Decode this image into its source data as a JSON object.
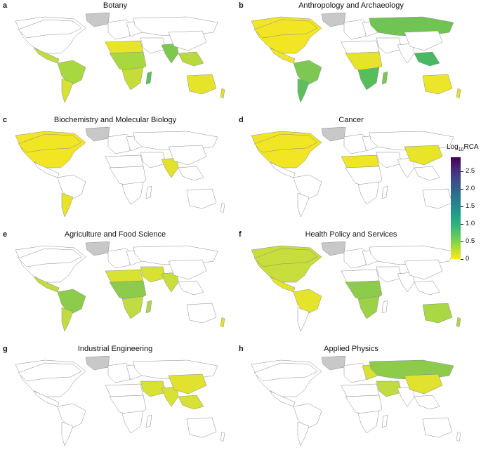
{
  "panels": [
    {
      "letter": "a",
      "title": "Botany",
      "fills": {
        "na": "#ffffff",
        "greenland": "#c8c8c8",
        "ca": "#ffffff",
        "mx": "#c0dc40",
        "sa_n": "#a8d840",
        "sa_s": "#d6e234",
        "eu": "#ffffff",
        "eu_e": "#ffffff",
        "ru": "#ffffff",
        "af_n": "#e8e428",
        "af_c": "#a8d840",
        "af_s": "#c6dc38",
        "madagascar": "#5fc05a",
        "me": "#ffffff",
        "in": "#7dc850",
        "cn": "#ffffff",
        "sea": "#b8da3c",
        "au": "#e6e42a",
        "nz": "#e2e22c"
      }
    },
    {
      "letter": "b",
      "title": "Anthropology and Archaeology",
      "fills": {
        "na": "#f2e624",
        "greenland": "#c8c8c8",
        "ca": "#f2e624",
        "mx": "#eee626",
        "sa_n": "#7cc852",
        "sa_s": "#5cbf5c",
        "eu": "#ffffff",
        "eu_e": "#ffffff",
        "ru": "#70c454",
        "af_n": "#ffffff",
        "af_c": "#e6e42a",
        "af_s": "#58be5c",
        "madagascar": "#7cc852",
        "me": "#ffffff",
        "in": "#ffffff",
        "cn": "#ffffff",
        "sea": "#48b865",
        "au": "#ece62a",
        "nz": "#e4e42a"
      }
    },
    {
      "letter": "c",
      "title": "Biochemistry and Molecular Biology",
      "fills": {
        "na": "#f2e624",
        "greenland": "#c8c8c8",
        "ca": "#f0e624",
        "mx": "#ffffff",
        "sa_n": "#ffffff",
        "sa_s": "#e8e428",
        "eu": "#ffffff",
        "eu_e": "#ffffff",
        "ru": "#ffffff",
        "af_n": "#ffffff",
        "af_c": "#ffffff",
        "af_s": "#ffffff",
        "madagascar": "#ffffff",
        "me": "#ffffff",
        "in": "#e2e22c",
        "cn": "#ffffff",
        "sea": "#ffffff",
        "au": "#ffffff",
        "nz": "#ffffff"
      }
    },
    {
      "letter": "d",
      "title": "Cancer",
      "fills": {
        "na": "#f2e624",
        "greenland": "#c8c8c8",
        "ca": "#f0e624",
        "mx": "#ffffff",
        "sa_n": "#ffffff",
        "sa_s": "#ffffff",
        "eu": "#ffffff",
        "eu_e": "#ffffff",
        "ru": "#ffffff",
        "af_n": "#eee626",
        "af_c": "#ffffff",
        "af_s": "#ffffff",
        "madagascar": "#ffffff",
        "me": "#ffffff",
        "in": "#ffffff",
        "cn": "#e8e428",
        "sea": "#ffffff",
        "au": "#ffffff",
        "nz": "#ffffff"
      }
    },
    {
      "letter": "e",
      "title": "Agriculture and Food Science",
      "fills": {
        "na": "#ffffff",
        "greenland": "#c8c8c8",
        "ca": "#ffffff",
        "mx": "#c0dc40",
        "sa_n": "#8ccc4a",
        "sa_s": "#c0dc40",
        "eu": "#ffffff",
        "eu_e": "#ffffff",
        "ru": "#ffffff",
        "af_n": "#d8e232",
        "af_c": "#8ccc4a",
        "af_s": "#c0dc40",
        "madagascar": "#b0d844",
        "me": "#d8e232",
        "in": "#c8de3c",
        "cn": "#ffffff",
        "sea": "#ffffff",
        "au": "#ffffff",
        "nz": "#e2e22c"
      }
    },
    {
      "letter": "f",
      "title": "Health Policy and Services",
      "fills": {
        "na": "#c8de3c",
        "greenland": "#c8c8c8",
        "ca": "#c8de3c",
        "mx": "#e6e42a",
        "sa_n": "#e6e42a",
        "sa_s": "#ffffff",
        "eu": "#ffffff",
        "eu_e": "#ffffff",
        "ru": "#ffffff",
        "af_n": "#ffffff",
        "af_c": "#8ccc4a",
        "af_s": "#9cd248",
        "madagascar": "#ffffff",
        "me": "#ffffff",
        "in": "#ffffff",
        "cn": "#ffffff",
        "sea": "#ffffff",
        "au": "#a8d844",
        "nz": "#b0d844"
      }
    },
    {
      "letter": "g",
      "title": "Industrial Engineering",
      "fills": {
        "na": "#ffffff",
        "greenland": "#c8c8c8",
        "ca": "#ffffff",
        "mx": "#ffffff",
        "sa_n": "#ffffff",
        "sa_s": "#ffffff",
        "eu": "#ffffff",
        "eu_e": "#ffffff",
        "ru": "#ffffff",
        "af_n": "#ffffff",
        "af_c": "#ffffff",
        "af_s": "#ffffff",
        "madagascar": "#ffffff",
        "me": "#d8e232",
        "in": "#d8e232",
        "cn": "#e0e22e",
        "sea": "#d8e232",
        "au": "#ffffff",
        "nz": "#ffffff"
      }
    },
    {
      "letter": "h",
      "title": "Applied Physics",
      "fills": {
        "na": "#ffffff",
        "greenland": "#c8c8c8",
        "ca": "#ffffff",
        "mx": "#ffffff",
        "sa_n": "#ffffff",
        "sa_s": "#ffffff",
        "eu": "#ffffff",
        "eu_e": "#d8e232",
        "ru": "#8ccc4a",
        "af_n": "#ffffff",
        "af_c": "#ffffff",
        "af_s": "#ffffff",
        "madagascar": "#ffffff",
        "me": "#c0dc40",
        "in": "#ffffff",
        "cn": "#e0e22e",
        "sea": "#ffffff",
        "au": "#ffffff",
        "nz": "#ffffff"
      }
    }
  ],
  "legend": {
    "title_main": "Log",
    "title_sub": "10",
    "title_rest": "RCA",
    "range": [
      0,
      2.9
    ],
    "ticks": [
      {
        "value": 0,
        "label": "0"
      },
      {
        "value": 0.5,
        "label": "0.5"
      },
      {
        "value": 1.0,
        "label": "1.0"
      },
      {
        "value": 1.5,
        "label": "1.5"
      },
      {
        "value": 2.0,
        "label": "2.0"
      },
      {
        "value": 2.5,
        "label": "2.5"
      }
    ],
    "colormap": "viridis"
  }
}
